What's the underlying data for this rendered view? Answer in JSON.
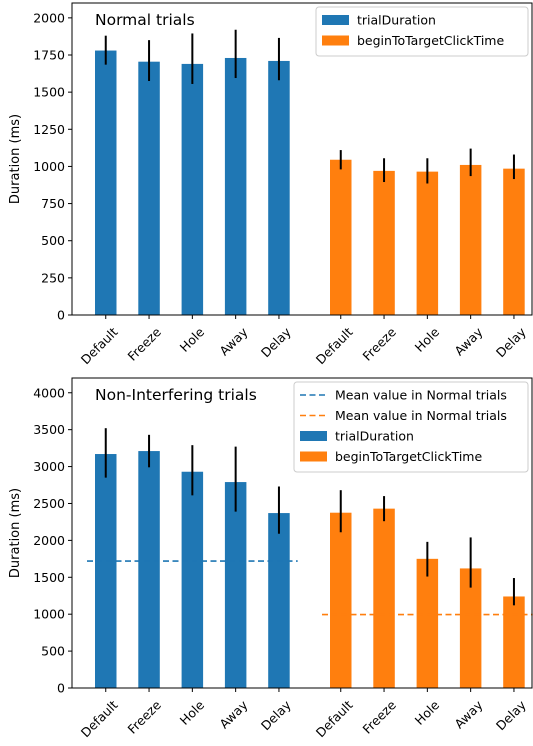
{
  "figure": {
    "background": "#ffffff"
  },
  "colors": {
    "trialDuration": "#1f77b4",
    "beginToTargetClickTime": "#ff7f0e",
    "error_bar": "#000000",
    "axis": "#000000"
  },
  "chart_data": [
    {
      "type": "bar",
      "title": "Normal trials",
      "ylabel": "Duration (ms)",
      "ylim": [
        0,
        2100
      ],
      "yticks": [
        0,
        250,
        500,
        750,
        1000,
        1250,
        1500,
        1750,
        2000
      ],
      "grid": false,
      "legend_placement": "top-right",
      "groups": [
        {
          "series": "trialDuration",
          "categories": [
            "Default",
            "Freeze",
            "Hole",
            "Away",
            "Delay"
          ],
          "values": [
            1780,
            1705,
            1690,
            1730,
            1710
          ],
          "err_low": [
            1685,
            1575,
            1555,
            1595,
            1580
          ],
          "err_high": [
            1880,
            1850,
            1895,
            1920,
            1865
          ]
        },
        {
          "series": "beginToTargetClickTime",
          "categories": [
            "Default",
            "Freeze",
            "Hole",
            "Away",
            "Delay"
          ],
          "values": [
            1045,
            970,
            965,
            1010,
            985
          ],
          "err_low": [
            980,
            895,
            885,
            935,
            915
          ],
          "err_high": [
            1110,
            1055,
            1055,
            1120,
            1080
          ]
        }
      ],
      "legend": [
        {
          "label": "trialDuration",
          "kind": "patch",
          "series": "trialDuration"
        },
        {
          "label": "beginToTargetClickTime",
          "kind": "patch",
          "series": "beginToTargetClickTime"
        }
      ]
    },
    {
      "type": "bar",
      "title": "Non-Interfering trials",
      "ylabel": "Duration (ms)",
      "ylim": [
        0,
        4200
      ],
      "yticks": [
        0,
        500,
        1000,
        1500,
        2000,
        2500,
        3000,
        3500,
        4000
      ],
      "grid": false,
      "legend_placement": "top-right",
      "groups": [
        {
          "series": "trialDuration",
          "categories": [
            "Default",
            "Freeze",
            "Hole",
            "Away",
            "Delay"
          ],
          "values": [
            3170,
            3210,
            2930,
            2790,
            2370
          ],
          "err_low": [
            2850,
            2990,
            2610,
            2390,
            2090
          ],
          "err_high": [
            3520,
            3430,
            3290,
            3270,
            2730
          ],
          "mean_line": 1720
        },
        {
          "series": "beginToTargetClickTime",
          "categories": [
            "Default",
            "Freeze",
            "Hole",
            "Away",
            "Delay"
          ],
          "values": [
            2375,
            2430,
            1750,
            1620,
            1240
          ],
          "err_low": [
            2110,
            2260,
            1510,
            1360,
            1120
          ],
          "err_high": [
            2680,
            2600,
            1980,
            2040,
            1490
          ],
          "mean_line": 995
        }
      ],
      "legend": [
        {
          "label": "Mean value in Normal trials",
          "kind": "dashed",
          "series": "trialDuration"
        },
        {
          "label": "Mean value in Normal trials",
          "kind": "dashed",
          "series": "beginToTargetClickTime"
        },
        {
          "label": "trialDuration",
          "kind": "patch",
          "series": "trialDuration"
        },
        {
          "label": "beginToTargetClickTime",
          "kind": "patch",
          "series": "beginToTargetClickTime"
        }
      ]
    }
  ]
}
